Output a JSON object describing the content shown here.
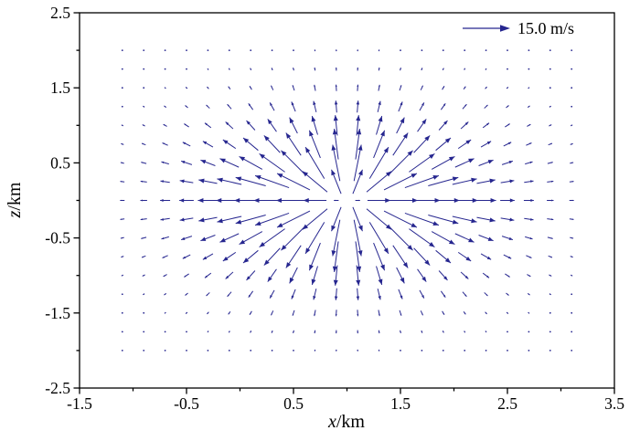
{
  "chart_data": {
    "type": "quiver",
    "title": "",
    "xlabel_var": "x",
    "xlabel_unit": "/km",
    "ylabel_var": "z",
    "ylabel_unit": "/km",
    "xlim": [
      -1.5,
      3.5
    ],
    "ylim": [
      -2.5,
      2.5
    ],
    "x_major_ticks": [
      -1.5,
      -0.5,
      0.5,
      1.5,
      2.5,
      3.5
    ],
    "y_major_ticks": [
      -2.5,
      -1.5,
      -0.5,
      0.5,
      1.5,
      2.5
    ],
    "minor_tick_step": 0.5,
    "grid": {
      "x_start": -1.1,
      "x_end": 3.1,
      "x_step": 0.2,
      "z_start": -2.0,
      "z_end": 2.0,
      "z_step": 0.25
    },
    "field": {
      "model": "radial-outflow-from-point-source",
      "center": {
        "x": 1.0,
        "z": 0.0
      },
      "peak_radius_km": 0.65,
      "z_anisotropy": 0.78,
      "max_speed_ms": 15.0
    },
    "legend": {
      "label": "15.0 m/s",
      "speed_ms": 15.0,
      "position": "top-right-inside"
    },
    "arrow_color": "#26268f",
    "axis_color": "#000000",
    "grid_lines": "off",
    "background": "#ffffff"
  }
}
